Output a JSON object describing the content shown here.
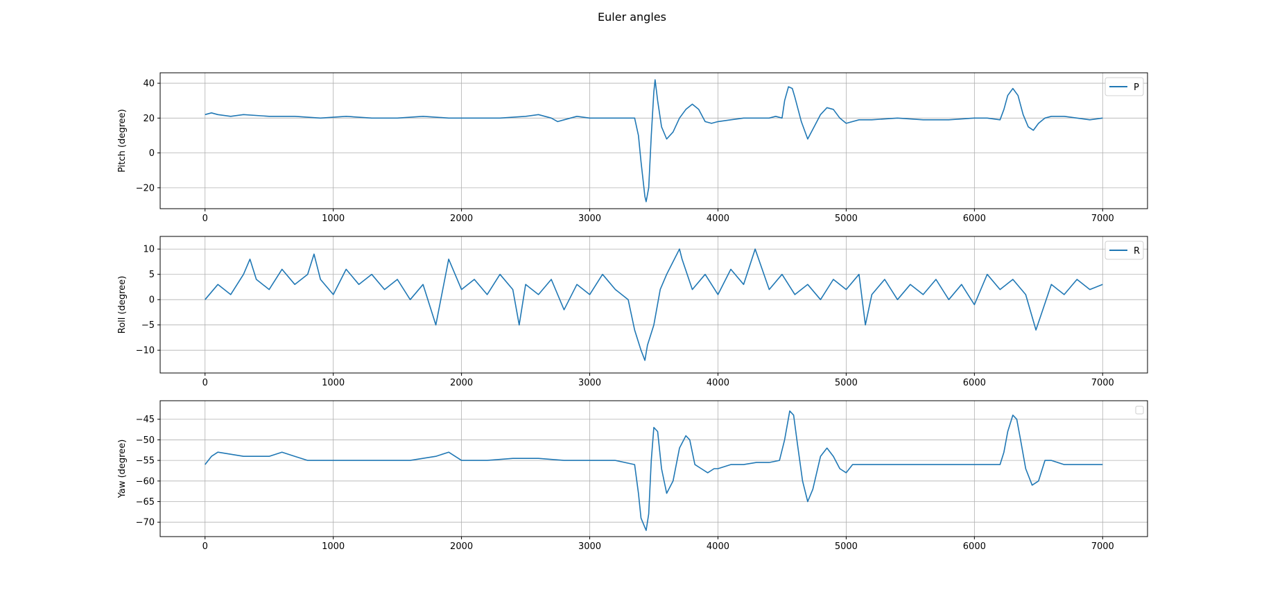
{
  "figure_title": "Euler angles",
  "chart_data": [
    {
      "type": "line",
      "ylabel": "Pitch (degree)",
      "xlim": [
        -350,
        7350
      ],
      "ylim": [
        -32,
        46
      ],
      "x_ticks": [
        0,
        1000,
        2000,
        3000,
        4000,
        5000,
        6000,
        7000
      ],
      "y_ticks": [
        -20,
        0,
        20,
        40
      ],
      "grid": true,
      "legend": {
        "position": "top-right",
        "entries": [
          "P"
        ]
      },
      "series": [
        {
          "name": "P",
          "color": "#1f77b4",
          "x": [
            0,
            50,
            100,
            200,
            300,
            500,
            700,
            900,
            1100,
            1300,
            1500,
            1700,
            1900,
            2100,
            2300,
            2500,
            2600,
            2700,
            2750,
            2800,
            2900,
            3000,
            3200,
            3350,
            3380,
            3400,
            3430,
            3440,
            3460,
            3480,
            3500,
            3510,
            3530,
            3560,
            3600,
            3650,
            3700,
            3750,
            3800,
            3850,
            3900,
            3950,
            4000,
            4100,
            4200,
            4300,
            4400,
            4450,
            4500,
            4520,
            4550,
            4580,
            4600,
            4650,
            4700,
            4750,
            4800,
            4850,
            4900,
            4950,
            5000,
            5100,
            5200,
            5400,
            5600,
            5800,
            6000,
            6100,
            6200,
            6230,
            6260,
            6300,
            6340,
            6380,
            6420,
            6460,
            6500,
            6550,
            6600,
            6700,
            6800,
            6900,
            7000
          ],
          "y": [
            22,
            23,
            22,
            21,
            22,
            21,
            21,
            20,
            21,
            20,
            20,
            21,
            20,
            20,
            20,
            21,
            22,
            20,
            18,
            19,
            21,
            20,
            20,
            20,
            10,
            -5,
            -25,
            -28,
            -20,
            10,
            35,
            42,
            30,
            15,
            8,
            12,
            20,
            25,
            28,
            25,
            18,
            17,
            18,
            19,
            20,
            20,
            20,
            21,
            20,
            30,
            38,
            37,
            32,
            18,
            8,
            15,
            22,
            26,
            25,
            20,
            17,
            19,
            19,
            20,
            19,
            19,
            20,
            20,
            19,
            25,
            33,
            37,
            33,
            22,
            15,
            13,
            17,
            20,
            21,
            21,
            20,
            19,
            20
          ]
        }
      ]
    },
    {
      "type": "line",
      "ylabel": "Roll (degree)",
      "xlim": [
        -350,
        7350
      ],
      "ylim": [
        -14.5,
        12.5
      ],
      "x_ticks": [
        0,
        1000,
        2000,
        3000,
        4000,
        5000,
        6000,
        7000
      ],
      "y_ticks": [
        -10,
        -5,
        0,
        5,
        10
      ],
      "grid": true,
      "legend": {
        "position": "top-right",
        "entries": [
          "R"
        ]
      },
      "series": [
        {
          "name": "R",
          "color": "#1f77b4",
          "x": [
            0,
            100,
            200,
            300,
            350,
            400,
            500,
            600,
            700,
            800,
            850,
            900,
            1000,
            1100,
            1200,
            1300,
            1400,
            1500,
            1600,
            1700,
            1800,
            1900,
            2000,
            2100,
            2200,
            2300,
            2400,
            2450,
            2500,
            2600,
            2700,
            2800,
            2900,
            3000,
            3100,
            3200,
            3300,
            3350,
            3400,
            3430,
            3450,
            3500,
            3550,
            3600,
            3700,
            3720,
            3800,
            3900,
            4000,
            4100,
            4200,
            4290,
            4400,
            4500,
            4600,
            4700,
            4800,
            4900,
            5000,
            5100,
            5150,
            5200,
            5300,
            5400,
            5500,
            5600,
            5700,
            5800,
            5900,
            6000,
            6100,
            6200,
            6300,
            6400,
            6480,
            6600,
            6700,
            6800,
            6900,
            7000
          ],
          "y": [
            0,
            3,
            1,
            5,
            8,
            4,
            2,
            6,
            3,
            5,
            9,
            4,
            1,
            6,
            3,
            5,
            2,
            4,
            0,
            3,
            -5,
            8,
            2,
            4,
            1,
            5,
            2,
            -5,
            3,
            1,
            4,
            -2,
            3,
            1,
            5,
            2,
            0,
            -6,
            -10,
            -12,
            -9,
            -5,
            2,
            5,
            10,
            8,
            2,
            5,
            1,
            6,
            3,
            10,
            2,
            5,
            1,
            3,
            0,
            4,
            2,
            5,
            -5,
            1,
            4,
            0,
            3,
            1,
            4,
            0,
            3,
            -1,
            5,
            2,
            4,
            1,
            -6,
            3,
            1,
            4,
            2,
            3
          ]
        }
      ]
    },
    {
      "type": "line",
      "ylabel": "Yaw (degree)",
      "xlim": [
        -350,
        7350
      ],
      "ylim": [
        -73.5,
        -40.5
      ],
      "x_ticks": [
        0,
        1000,
        2000,
        3000,
        4000,
        5000,
        6000,
        7000
      ],
      "y_ticks": [
        -70,
        -65,
        -60,
        -55,
        -50,
        -45
      ],
      "grid": true,
      "legend": {
        "position": "top-right",
        "entries": []
      },
      "series": [
        {
          "name": "",
          "color": "#1f77b4",
          "x": [
            0,
            50,
            100,
            200,
            300,
            400,
            500,
            600,
            700,
            800,
            900,
            1000,
            1200,
            1400,
            1600,
            1800,
            1900,
            2000,
            2200,
            2400,
            2600,
            2800,
            3000,
            3200,
            3350,
            3380,
            3400,
            3440,
            3460,
            3480,
            3500,
            3530,
            3560,
            3600,
            3650,
            3700,
            3750,
            3780,
            3820,
            3870,
            3920,
            3970,
            4000,
            4100,
            4200,
            4300,
            4400,
            4480,
            4520,
            4560,
            4590,
            4620,
            4660,
            4700,
            4740,
            4800,
            4850,
            4900,
            4950,
            5000,
            5050,
            5150,
            5300,
            5500,
            5700,
            5900,
            6100,
            6200,
            6230,
            6260,
            6300,
            6330,
            6360,
            6400,
            6450,
            6500,
            6550,
            6600,
            6700,
            6800,
            6900,
            7000
          ],
          "y": [
            -56,
            -54,
            -53,
            -53.5,
            -54,
            -54,
            -54,
            -53,
            -54,
            -55,
            -55,
            -55,
            -55,
            -55,
            -55,
            -54,
            -53,
            -55,
            -55,
            -54.5,
            -54.5,
            -55,
            -55,
            -55,
            -56,
            -63,
            -69,
            -72,
            -68,
            -55,
            -47,
            -48,
            -57,
            -63,
            -60,
            -52,
            -49,
            -50,
            -56,
            -57,
            -58,
            -57,
            -57,
            -56,
            -56,
            -55.5,
            -55.5,
            -55,
            -50,
            -43,
            -44,
            -51,
            -60,
            -65,
            -62,
            -54,
            -52,
            -54,
            -57,
            -58,
            -56,
            -56,
            -56,
            -56,
            -56,
            -56,
            -56,
            -56,
            -53,
            -48,
            -44,
            -45,
            -50,
            -57,
            -61,
            -60,
            -55,
            -55,
            -56,
            -56,
            -56,
            -56
          ]
        }
      ]
    }
  ]
}
